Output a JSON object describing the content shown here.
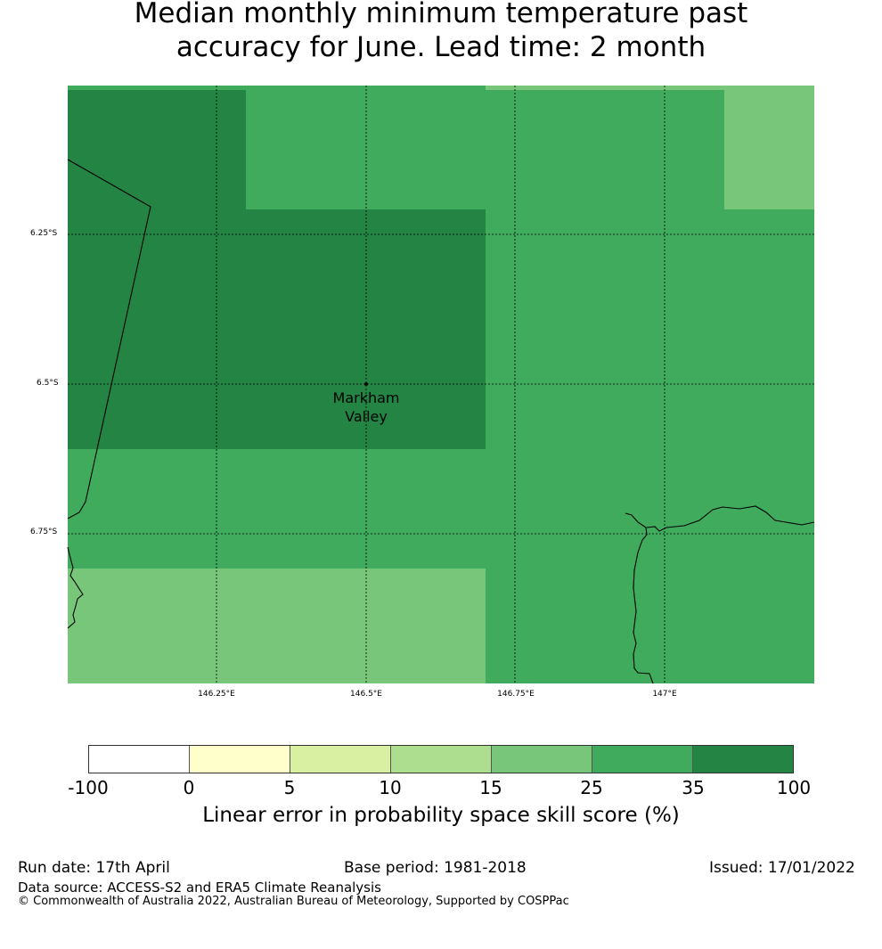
{
  "title": {
    "line1": "Median monthly minimum temperature past",
    "line2": "accuracy for June. Lead time: 2 month"
  },
  "map": {
    "lat_labels": [
      "6.25°S",
      "6.5°S",
      "6.75°S"
    ],
    "lon_labels": [
      "146.25°E",
      "146.5°E",
      "146.75°E",
      "147°E"
    ],
    "place": {
      "name_line1": "Markham",
      "name_line2": "Valley"
    },
    "category_colors": [
      "#ffffff",
      "#ffffcc",
      "#d9f0a3",
      "#addd8e",
      "#78c679",
      "#41ab5d",
      "#238443"
    ]
  },
  "colorbar": {
    "ticks": [
      "-100",
      "0",
      "5",
      "10",
      "15",
      "25",
      "35",
      "100"
    ],
    "label": "Linear error in probability space skill score (%)"
  },
  "footer": {
    "run_date": "Run date: 17th April",
    "base_period": "Base period: 1981-2018",
    "issued": "Issued: 17/01/2022",
    "data_source": "Data source: ACCESS-S2 and ERA5 Climate Reanalysis",
    "copyright": "© Commonwealth of Australia 2022, Australian Bureau of Meteorology, Supported by COSPPac"
  }
}
